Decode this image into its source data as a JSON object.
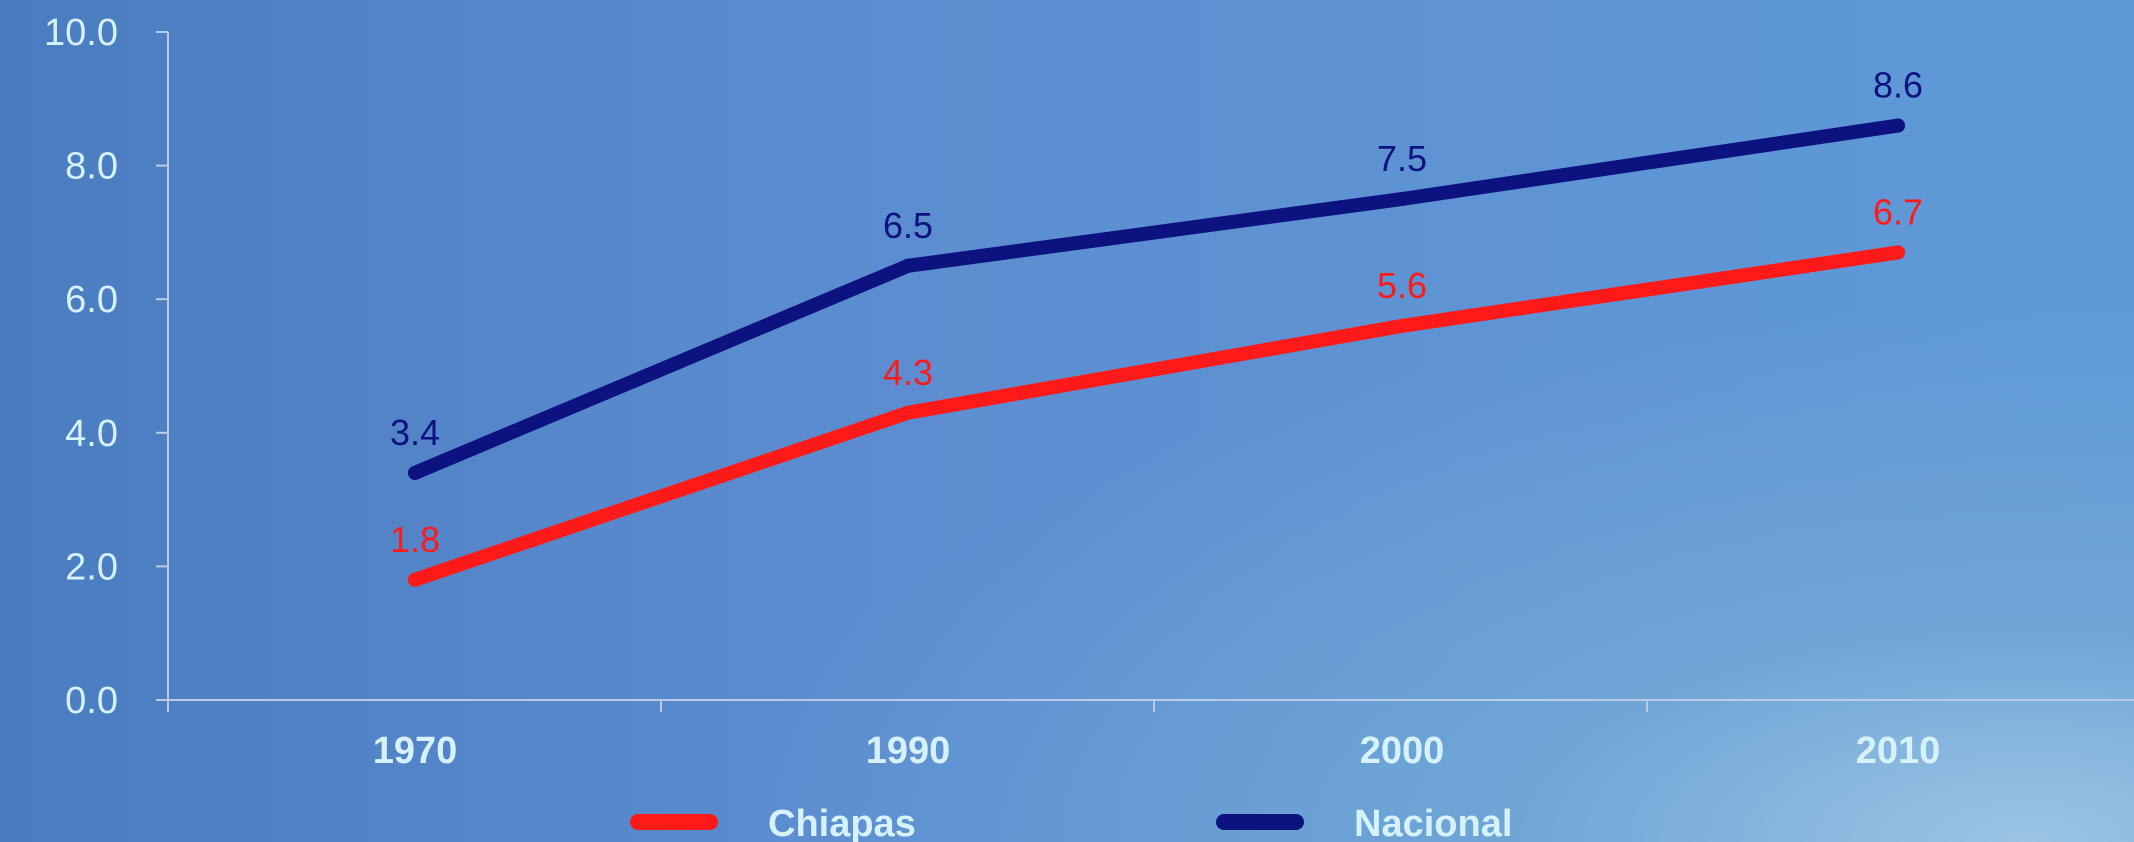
{
  "chart_data": {
    "type": "line",
    "categories": [
      "1970",
      "1990",
      "2000",
      "2010"
    ],
    "series": [
      {
        "name": "Chiapas",
        "values": [
          1.8,
          4.3,
          5.6,
          6.7
        ],
        "color": "#ff1a1a",
        "labels": [
          "1.8",
          "4.3",
          "5.6",
          "6.7"
        ]
      },
      {
        "name": "Nacional",
        "values": [
          3.4,
          6.5,
          7.5,
          8.6
        ],
        "color": "#0c1280",
        "labels": [
          "3.4",
          "6.5",
          "7.5",
          "8.6"
        ]
      }
    ],
    "y_ticks": [
      "0.0",
      "2.0",
      "4.0",
      "6.0",
      "8.0",
      "10.0"
    ],
    "ylim": [
      0,
      10
    ],
    "grid": false,
    "legend_position": "bottom"
  }
}
